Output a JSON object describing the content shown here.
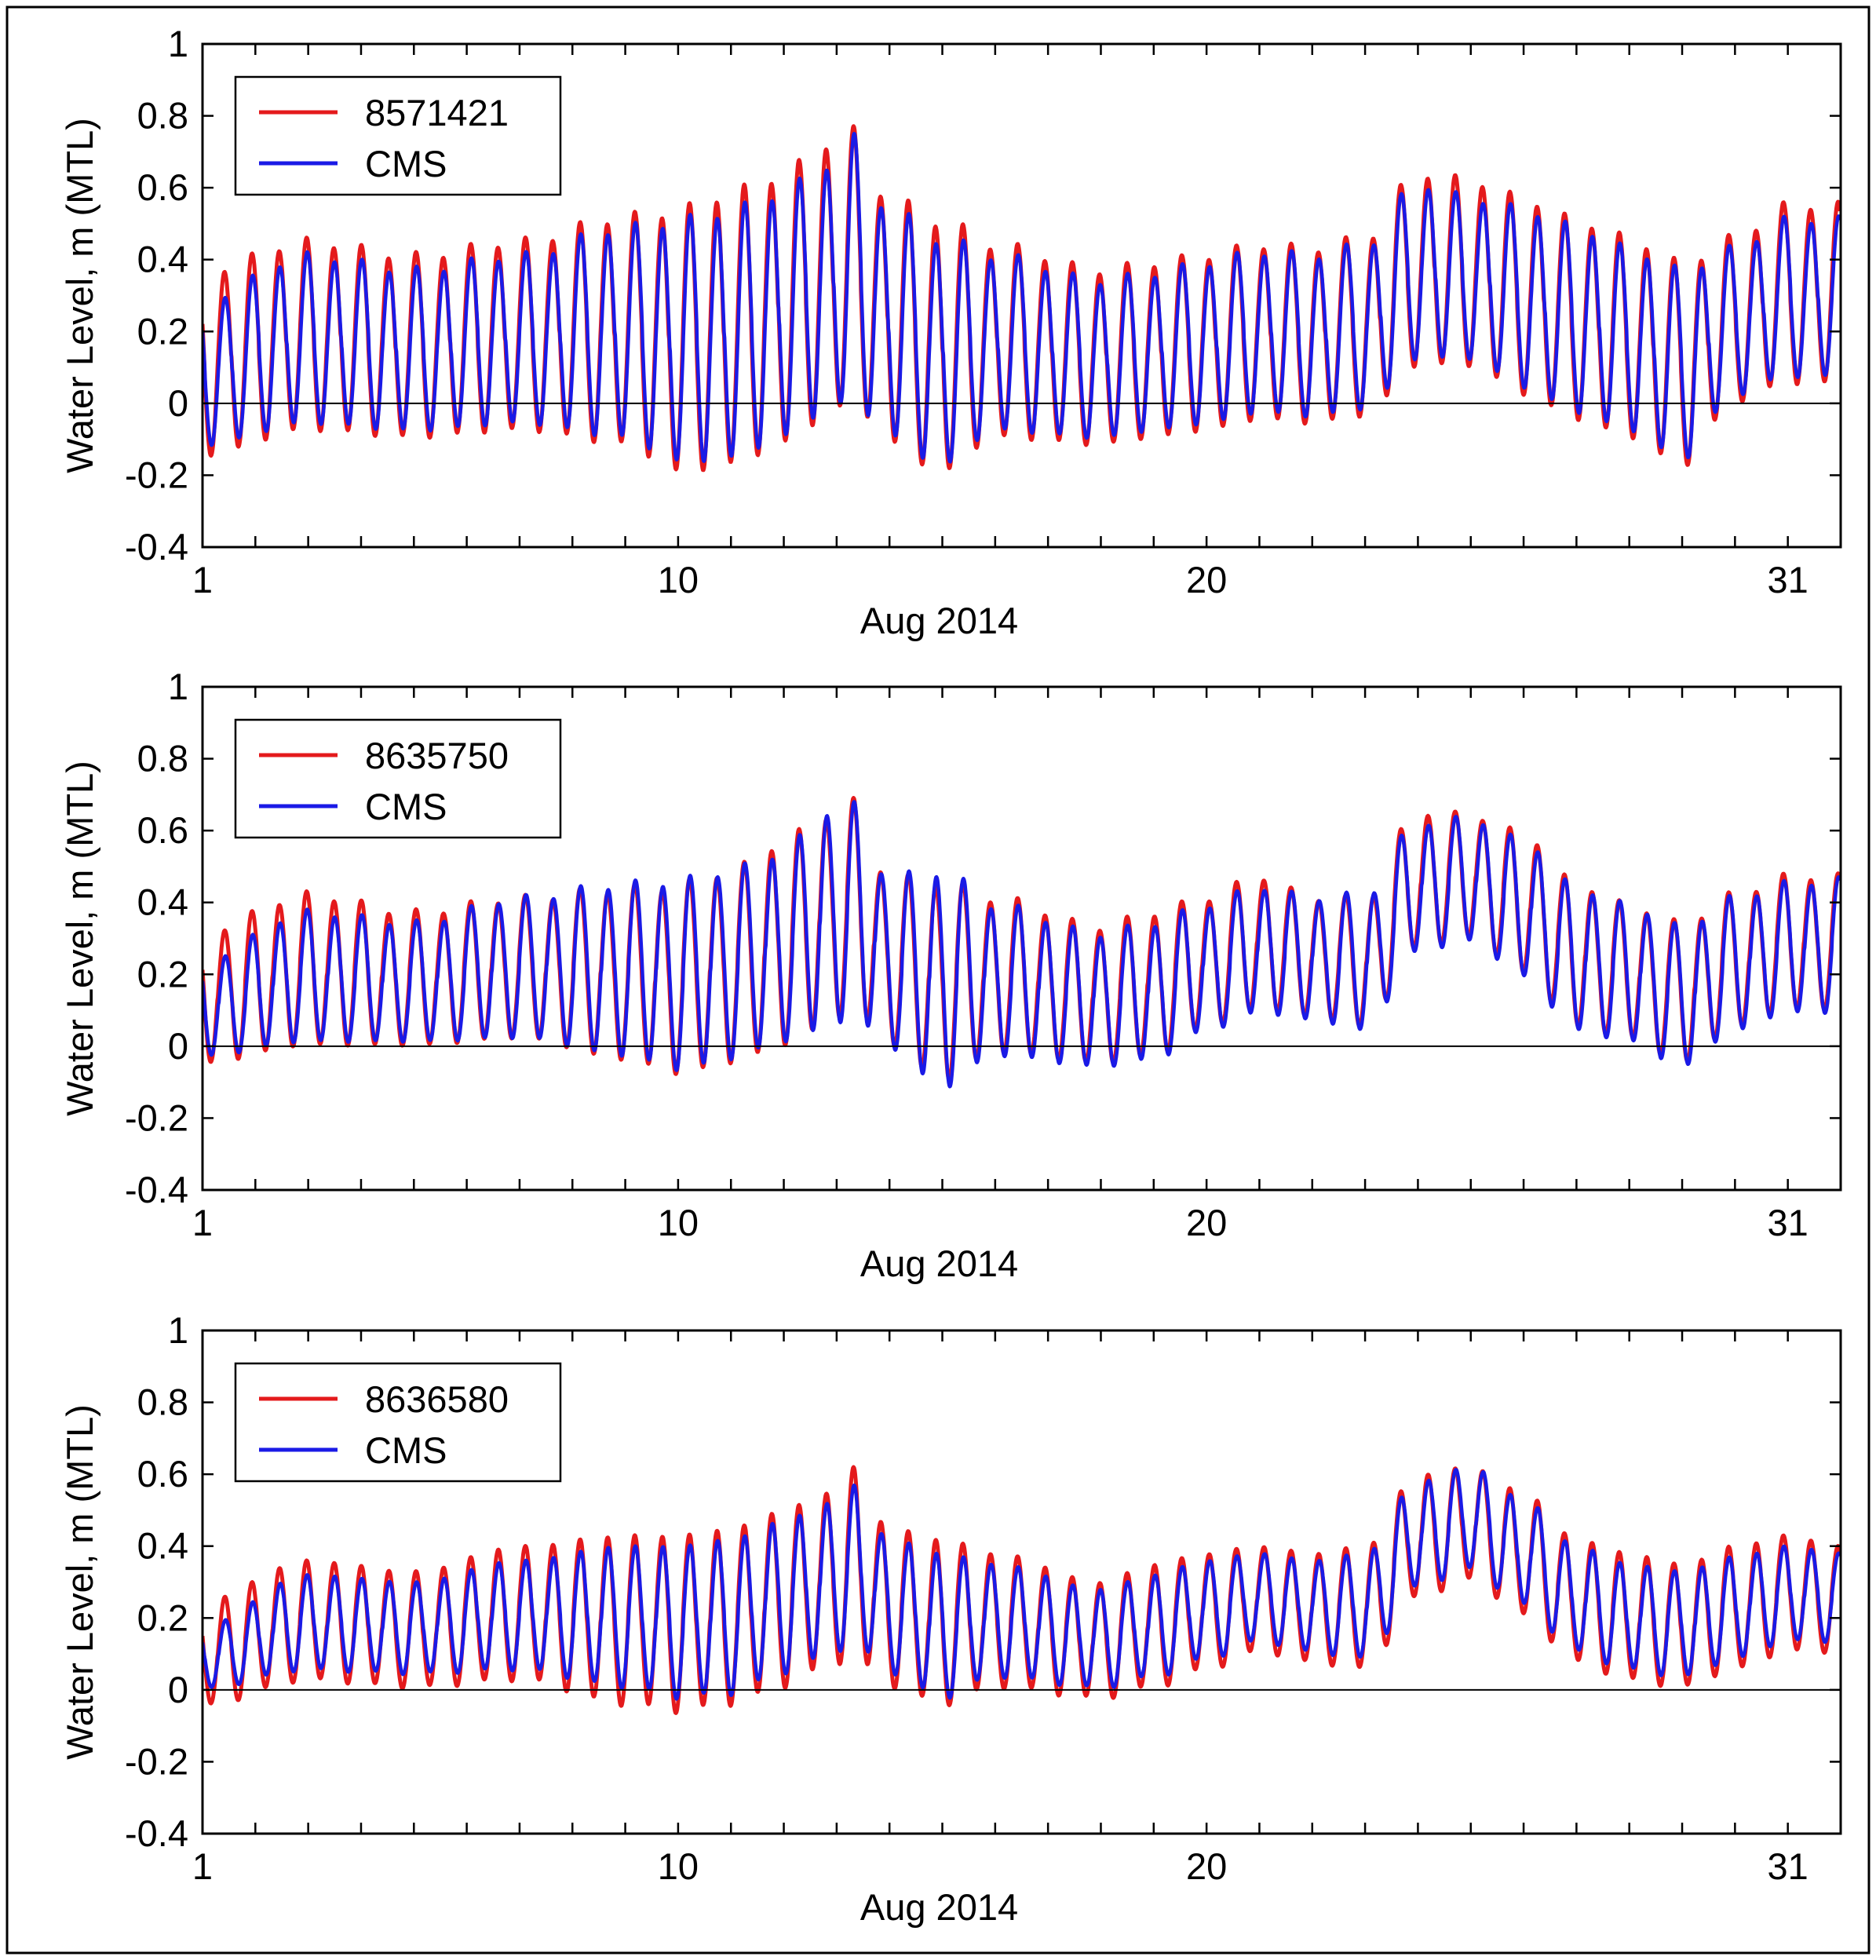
{
  "figure": {
    "layout": "3 stacked panels, shared x axis style",
    "colors": {
      "observed": "#e41a1c",
      "model": "#1a1ae6",
      "frame": "#000000"
    }
  },
  "chart_data": [
    {
      "type": "line",
      "panel": "top",
      "xlabel": "Aug 2014",
      "ylabel": "Water Level, m (MTL)",
      "xlim": [
        1,
        32
      ],
      "ylim": [
        -0.4,
        1
      ],
      "xtick_labels": [
        {
          "value": 1,
          "label": "1"
        },
        {
          "value": 10,
          "label": "10"
        },
        {
          "value": 20,
          "label": "20"
        },
        {
          "value": 31,
          "label": "31"
        }
      ],
      "ytick_labels": [
        "1",
        "0.8",
        "0.6",
        "0.4",
        "0.2",
        "0",
        "-0.2",
        "-0.4"
      ],
      "legend": [
        "8571421",
        "CMS"
      ],
      "legend_position": "top-left",
      "zero_line": true,
      "series": [
        {
          "name": "8571421",
          "color": "#e41a1c",
          "x": [
            1,
            3,
            5,
            7,
            9,
            10,
            11,
            12,
            12.8,
            13.3,
            14,
            15,
            16,
            18,
            19,
            20,
            21,
            22,
            23,
            24,
            25,
            26,
            27,
            28,
            29,
            30,
            31,
            32
          ],
          "highs": [
            0.38,
            0.46,
            0.42,
            0.46,
            0.53,
            0.55,
            0.6,
            0.65,
            0.74,
            0.77,
            0.58,
            0.52,
            0.45,
            0.38,
            0.4,
            0.42,
            0.45,
            0.44,
            0.47,
            0.65,
            0.63,
            0.58,
            0.52,
            0.47,
            0.4,
            0.47,
            0.56,
            0.56
          ],
          "lows": [
            -0.15,
            -0.08,
            -0.1,
            -0.08,
            -0.12,
            -0.2,
            -0.18,
            -0.12,
            -0.05,
            0.0,
            -0.12,
            -0.2,
            -0.1,
            -0.12,
            -0.1,
            -0.08,
            -0.05,
            -0.06,
            -0.04,
            0.1,
            0.1,
            0.02,
            -0.05,
            -0.1,
            -0.18,
            0.0,
            0.05,
            0.05
          ],
          "min_value": -0.22,
          "max_value": 0.77
        },
        {
          "name": "CMS",
          "color": "#1a1ae6",
          "x": [
            1,
            3,
            5,
            7,
            9,
            10,
            11,
            12,
            12.8,
            13.3,
            14,
            15,
            16,
            18,
            19,
            20,
            21,
            22,
            23,
            24,
            25,
            26,
            27,
            28,
            29,
            30,
            31,
            32
          ],
          "highs": [
            0.3,
            0.42,
            0.38,
            0.42,
            0.5,
            0.52,
            0.55,
            0.6,
            0.68,
            0.75,
            0.55,
            0.47,
            0.42,
            0.35,
            0.37,
            0.4,
            0.43,
            0.42,
            0.45,
            0.62,
            0.58,
            0.55,
            0.5,
            0.44,
            0.38,
            0.44,
            0.52,
            0.52
          ],
          "lows": [
            -0.12,
            -0.06,
            -0.08,
            -0.06,
            -0.1,
            -0.17,
            -0.16,
            -0.1,
            -0.03,
            0.0,
            -0.1,
            -0.18,
            -0.08,
            -0.1,
            -0.08,
            -0.06,
            -0.03,
            -0.04,
            -0.02,
            0.12,
            0.12,
            0.04,
            -0.03,
            -0.08,
            -0.16,
            0.02,
            0.07,
            0.07
          ]
        }
      ]
    },
    {
      "type": "line",
      "panel": "middle",
      "xlabel": "Aug 2014",
      "ylabel": "Water Level, m (MTL)",
      "xlim": [
        1,
        32
      ],
      "ylim": [
        -0.4,
        1
      ],
      "xtick_labels": [
        {
          "value": 1,
          "label": "1"
        },
        {
          "value": 10,
          "label": "10"
        },
        {
          "value": 20,
          "label": "20"
        },
        {
          "value": 31,
          "label": "31"
        }
      ],
      "ytick_labels": [
        "1",
        "0.8",
        "0.6",
        "0.4",
        "0.2",
        "0",
        "-0.2",
        "-0.4"
      ],
      "legend": [
        "8635750",
        "CMS"
      ],
      "legend_position": "top-left",
      "zero_line": true,
      "series": [
        {
          "name": "8635750",
          "color": "#e41a1c",
          "x": [
            1,
            3,
            5,
            7,
            9,
            10,
            11,
            12,
            12.8,
            13.3,
            14,
            15,
            16,
            18,
            19,
            20,
            21,
            22,
            23,
            24,
            25,
            26,
            27,
            28,
            29,
            30,
            31,
            32
          ],
          "highs": [
            0.33,
            0.43,
            0.38,
            0.42,
            0.45,
            0.46,
            0.5,
            0.58,
            0.66,
            0.69,
            0.48,
            0.47,
            0.42,
            0.34,
            0.38,
            0.42,
            0.48,
            0.42,
            0.42,
            0.66,
            0.65,
            0.6,
            0.46,
            0.4,
            0.35,
            0.43,
            0.48,
            0.48
          ],
          "lows": [
            -0.05,
            0.0,
            0.0,
            0.02,
            -0.04,
            -0.08,
            -0.05,
            0.0,
            0.05,
            0.1,
            0.0,
            -0.1,
            -0.02,
            -0.05,
            -0.03,
            0.05,
            0.1,
            0.08,
            0.05,
            0.27,
            0.3,
            0.2,
            0.05,
            0.02,
            -0.05,
            0.05,
            0.1,
            0.1
          ],
          "min_value": -0.14,
          "max_value": 0.69
        },
        {
          "name": "CMS",
          "color": "#1a1ae6",
          "x": [
            1,
            3,
            5,
            7,
            9,
            10,
            11,
            12,
            12.8,
            13.3,
            14,
            15,
            16,
            18,
            19,
            20,
            21,
            22,
            23,
            24,
            25,
            26,
            27,
            28,
            29,
            30,
            31,
            32
          ],
          "highs": [
            0.25,
            0.38,
            0.35,
            0.42,
            0.46,
            0.47,
            0.5,
            0.55,
            0.67,
            0.68,
            0.48,
            0.5,
            0.4,
            0.32,
            0.35,
            0.4,
            0.45,
            0.42,
            0.43,
            0.63,
            0.64,
            0.58,
            0.45,
            0.4,
            0.34,
            0.42,
            0.46,
            0.47
          ],
          "lows": [
            -0.03,
            0.01,
            0.01,
            0.02,
            -0.03,
            -0.07,
            -0.04,
            0.01,
            0.04,
            0.08,
            -0.01,
            -0.12,
            -0.03,
            -0.06,
            -0.04,
            0.04,
            0.09,
            0.07,
            0.04,
            0.26,
            0.29,
            0.19,
            0.04,
            0.01,
            -0.06,
            0.04,
            0.09,
            0.09
          ]
        }
      ]
    },
    {
      "type": "line",
      "panel": "bottom",
      "xlabel": "Aug 2014",
      "ylabel": "Water Level, m (MTL)",
      "xlim": [
        1,
        32
      ],
      "ylim": [
        -0.4,
        1
      ],
      "xtick_labels": [
        {
          "value": 1,
          "label": "1"
        },
        {
          "value": 10,
          "label": "10"
        },
        {
          "value": 20,
          "label": "20"
        },
        {
          "value": 31,
          "label": "31"
        }
      ],
      "ytick_labels": [
        "1",
        "0.8",
        "0.6",
        "0.4",
        "0.2",
        "0",
        "-0.2",
        "-0.4"
      ],
      "legend": [
        "8636580",
        "CMS"
      ],
      "legend_position": "top-left",
      "zero_line": true,
      "series": [
        {
          "name": "8636580",
          "color": "#e41a1c",
          "x": [
            1,
            3,
            5,
            7,
            9,
            10,
            11,
            12,
            12.8,
            13.3,
            14,
            15,
            16,
            18,
            19,
            20,
            21,
            22,
            23,
            24,
            25,
            26,
            27,
            28,
            29,
            30,
            31,
            32
          ],
          "highs": [
            0.25,
            0.36,
            0.33,
            0.4,
            0.43,
            0.43,
            0.45,
            0.5,
            0.55,
            0.62,
            0.45,
            0.42,
            0.38,
            0.3,
            0.35,
            0.38,
            0.4,
            0.38,
            0.4,
            0.6,
            0.62,
            0.55,
            0.42,
            0.38,
            0.35,
            0.4,
            0.43,
            0.4
          ],
          "lows": [
            -0.05,
            0.02,
            0.0,
            0.02,
            -0.05,
            -0.07,
            -0.05,
            0.0,
            0.05,
            0.08,
            0.0,
            -0.05,
            0.0,
            -0.03,
            0.0,
            0.05,
            0.1,
            0.07,
            0.05,
            0.25,
            0.3,
            0.2,
            0.07,
            0.02,
            0.0,
            0.05,
            0.1,
            0.1
          ],
          "min_value": -0.08,
          "max_value": 0.62
        },
        {
          "name": "CMS",
          "color": "#1a1ae6",
          "x": [
            1,
            3,
            5,
            7,
            9,
            10,
            11,
            12,
            12.8,
            13.3,
            14,
            15,
            16,
            18,
            19,
            20,
            21,
            22,
            23,
            24,
            25,
            26,
            27,
            28,
            29,
            30,
            31,
            32
          ],
          "highs": [
            0.18,
            0.32,
            0.3,
            0.36,
            0.4,
            0.4,
            0.42,
            0.47,
            0.52,
            0.57,
            0.42,
            0.38,
            0.35,
            0.28,
            0.32,
            0.36,
            0.38,
            0.36,
            0.38,
            0.58,
            0.62,
            0.53,
            0.4,
            0.35,
            0.33,
            0.37,
            0.4,
            0.38
          ],
          "lows": [
            0.0,
            0.05,
            0.04,
            0.05,
            0.0,
            -0.03,
            -0.02,
            0.04,
            0.08,
            0.12,
            0.04,
            -0.03,
            0.03,
            0.0,
            0.03,
            0.08,
            0.13,
            0.1,
            0.08,
            0.28,
            0.33,
            0.23,
            0.1,
            0.05,
            0.03,
            0.08,
            0.13,
            0.13
          ]
        }
      ]
    }
  ]
}
